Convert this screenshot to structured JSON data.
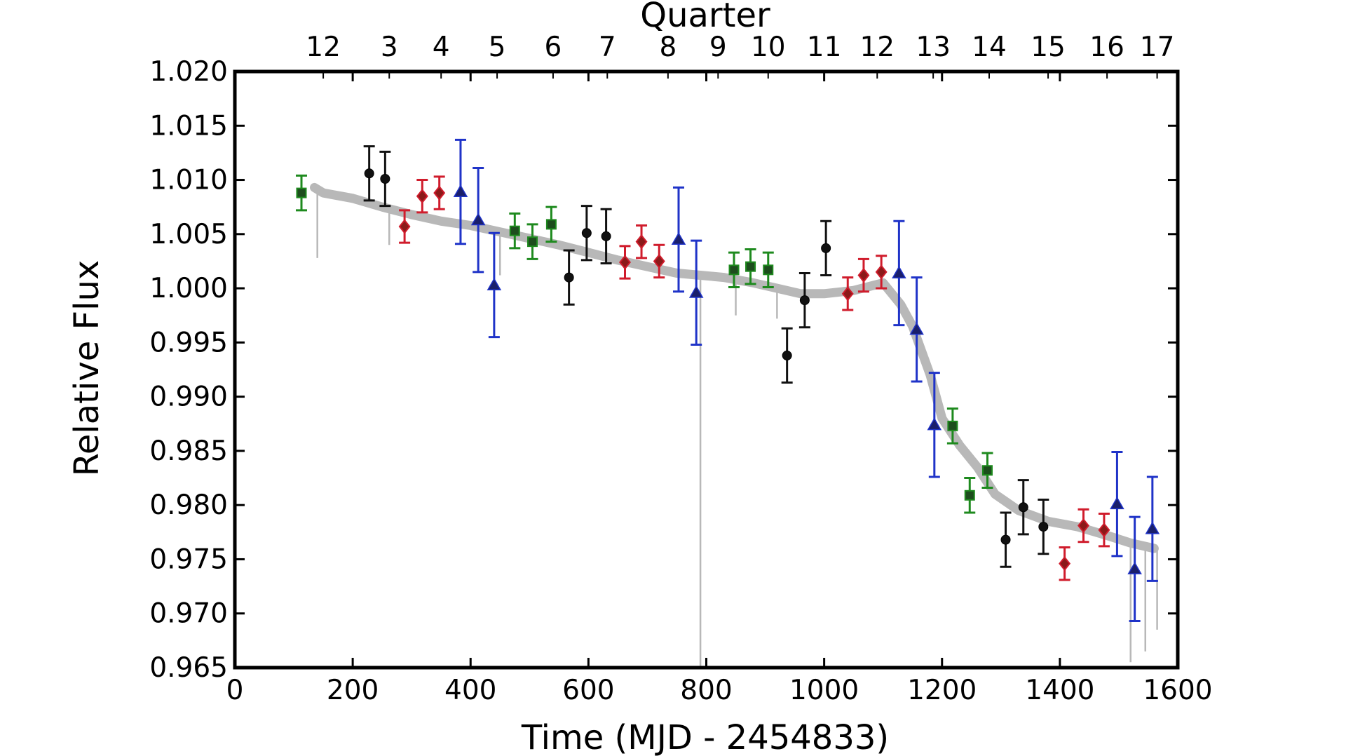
{
  "chart_data": {
    "type": "scatter",
    "title": "",
    "xlabel": "Time (MJD - 2454833)",
    "ylabel": "Relative Flux",
    "top_axis_label": "Quarter",
    "xlim": [
      0,
      1600
    ],
    "ylim": [
      0.965,
      1.02
    ],
    "x_ticks": [
      "0",
      "200",
      "400",
      "600",
      "800",
      "1000",
      "1200",
      "1400",
      "1600"
    ],
    "y_ticks": [
      "0.965",
      "0.970",
      "0.975",
      "0.980",
      "0.985",
      "0.990",
      "0.995",
      "1.000",
      "1.005",
      "1.010",
      "1.015",
      "1.020"
    ],
    "quarter_ticks": [
      {
        "label": "12",
        "x": 150
      },
      {
        "label": "3",
        "x": 262
      },
      {
        "label": "4",
        "x": 350
      },
      {
        "label": "5",
        "x": 445
      },
      {
        "label": "6",
        "x": 540
      },
      {
        "label": "7",
        "x": 632
      },
      {
        "label": "8",
        "x": 735
      },
      {
        "label": "9",
        "x": 820
      },
      {
        "label": "10",
        "x": 905
      },
      {
        "label": "11",
        "x": 1000
      },
      {
        "label": "12",
        "x": 1090
      },
      {
        "label": "13",
        "x": 1185
      },
      {
        "label": "14",
        "x": 1280
      },
      {
        "label": "15",
        "x": 1380
      },
      {
        "label": "16",
        "x": 1480
      },
      {
        "label": "17",
        "x": 1565
      }
    ],
    "grid": false,
    "colors": {
      "black": "#111111",
      "red": "#d01c2c",
      "green": "#1e8a1e",
      "blue": "#1f33c8",
      "gray": "#b8b8b8"
    },
    "lightcurve": [
      [
        135,
        1.0093
      ],
      [
        150,
        1.0088
      ],
      [
        200,
        1.0083
      ],
      [
        250,
        1.0075
      ],
      [
        300,
        1.0068
      ],
      [
        350,
        1.0062
      ],
      [
        400,
        1.0058
      ],
      [
        450,
        1.0052
      ],
      [
        500,
        1.0046
      ],
      [
        550,
        1.004
      ],
      [
        600,
        1.0033
      ],
      [
        650,
        1.0026
      ],
      [
        700,
        1.002
      ],
      [
        750,
        1.0014
      ],
      [
        790,
        1.0012
      ],
      [
        830,
        1.001
      ],
      [
        880,
        1.0005
      ],
      [
        920,
        1.0
      ],
      [
        960,
        0.9995
      ],
      [
        1000,
        0.9995
      ],
      [
        1050,
        0.9998
      ],
      [
        1100,
        1.0005
      ],
      [
        1130,
        0.9985
      ],
      [
        1150,
        0.9965
      ],
      [
        1180,
        0.992
      ],
      [
        1200,
        0.988
      ],
      [
        1230,
        0.9855
      ],
      [
        1260,
        0.9835
      ],
      [
        1290,
        0.981
      ],
      [
        1330,
        0.9795
      ],
      [
        1380,
        0.9785
      ],
      [
        1430,
        0.978
      ],
      [
        1480,
        0.9772
      ],
      [
        1520,
        0.9765
      ],
      [
        1560,
        0.976
      ]
    ],
    "series": [
      {
        "marker": "circle",
        "color": "black",
        "points": [
          {
            "x": 228,
            "y": 1.0106,
            "err": 0.0025
          },
          {
            "x": 255,
            "y": 1.0101,
            "err": 0.0025
          },
          {
            "x": 597,
            "y": 1.0051,
            "err": 0.0025
          },
          {
            "x": 630,
            "y": 1.0048,
            "err": 0.0025
          },
          {
            "x": 567,
            "y": 1.001,
            "err": 0.0025
          },
          {
            "x": 937,
            "y": 0.9938,
            "err": 0.0025
          },
          {
            "x": 967,
            "y": 0.9989,
            "err": 0.0025
          },
          {
            "x": 1003,
            "y": 1.0037,
            "err": 0.0025
          },
          {
            "x": 1308,
            "y": 0.9768,
            "err": 0.0025
          },
          {
            "x": 1338,
            "y": 0.9798,
            "err": 0.0025
          },
          {
            "x": 1372,
            "y": 0.978,
            "err": 0.0025
          }
        ]
      },
      {
        "marker": "diamond",
        "color": "red",
        "points": [
          {
            "x": 288,
            "y": 1.0057,
            "err": 0.0015
          },
          {
            "x": 318,
            "y": 1.0085,
            "err": 0.0015
          },
          {
            "x": 347,
            "y": 1.0088,
            "err": 0.0015
          },
          {
            "x": 662,
            "y": 1.0024,
            "err": 0.0015
          },
          {
            "x": 690,
            "y": 1.0043,
            "err": 0.0015
          },
          {
            "x": 720,
            "y": 1.0025,
            "err": 0.0015
          },
          {
            "x": 1040,
            "y": 0.9995,
            "err": 0.0015
          },
          {
            "x": 1067,
            "y": 1.0012,
            "err": 0.0015
          },
          {
            "x": 1097,
            "y": 1.0015,
            "err": 0.0015
          },
          {
            "x": 1408,
            "y": 0.9746,
            "err": 0.0015
          },
          {
            "x": 1440,
            "y": 0.9781,
            "err": 0.0015
          },
          {
            "x": 1475,
            "y": 0.9777,
            "err": 0.0015
          }
        ]
      },
      {
        "marker": "square",
        "color": "green",
        "points": [
          {
            "x": 113,
            "y": 1.0088,
            "err": 0.0016
          },
          {
            "x": 475,
            "y": 1.0053,
            "err": 0.0016
          },
          {
            "x": 505,
            "y": 1.0043,
            "err": 0.0016
          },
          {
            "x": 537,
            "y": 1.0059,
            "err": 0.0016
          },
          {
            "x": 847,
            "y": 1.0017,
            "err": 0.0016
          },
          {
            "x": 875,
            "y": 1.002,
            "err": 0.0016
          },
          {
            "x": 905,
            "y": 1.0017,
            "err": 0.0016
          },
          {
            "x": 1218,
            "y": 0.9873,
            "err": 0.0016
          },
          {
            "x": 1247,
            "y": 0.9809,
            "err": 0.0016
          },
          {
            "x": 1277,
            "y": 0.9832,
            "err": 0.0016
          }
        ]
      },
      {
        "marker": "triangle",
        "color": "blue",
        "points": [
          {
            "x": 383,
            "y": 1.0089,
            "err": 0.0048
          },
          {
            "x": 413,
            "y": 1.0063,
            "err": 0.0048
          },
          {
            "x": 440,
            "y": 1.0003,
            "err": 0.0048
          },
          {
            "x": 753,
            "y": 1.0045,
            "err": 0.0048
          },
          {
            "x": 783,
            "y": 0.9996,
            "err": 0.0048
          },
          {
            "x": 1127,
            "y": 1.0014,
            "err": 0.0048
          },
          {
            "x": 1157,
            "y": 0.9962,
            "err": 0.0048
          },
          {
            "x": 1187,
            "y": 0.9874,
            "err": 0.0048
          },
          {
            "x": 1497,
            "y": 0.9801,
            "err": 0.0048
          },
          {
            "x": 1527,
            "y": 0.9741,
            "err": 0.0048
          },
          {
            "x": 1557,
            "y": 0.9778,
            "err": 0.0048
          }
        ]
      }
    ]
  }
}
